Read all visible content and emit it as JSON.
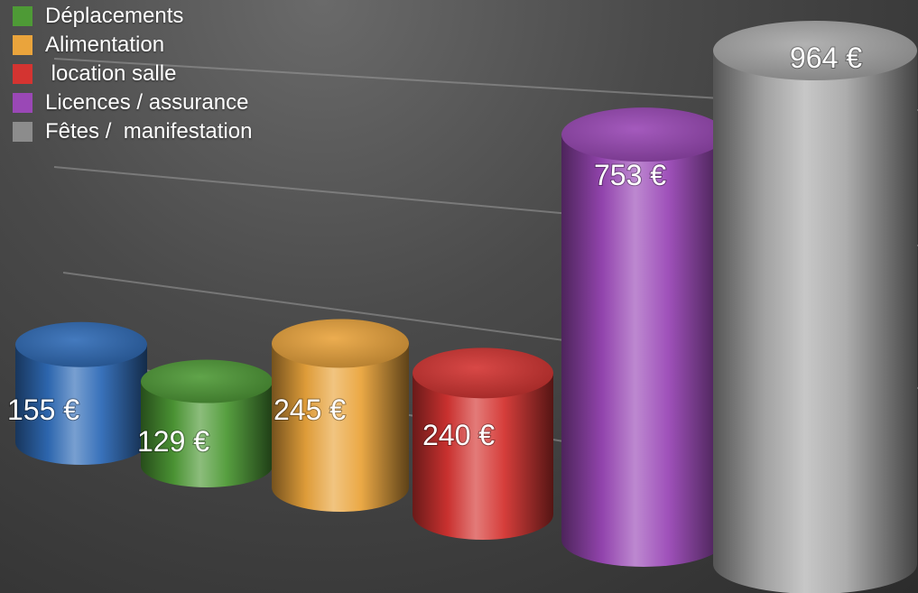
{
  "chart_data": {
    "type": "bar",
    "categories": [
      "",
      "Déplacements",
      "Alimentation",
      "location salle",
      "Licences / assurance",
      "Fêtes /  manifestation"
    ],
    "values": [
      155,
      129,
      245,
      240,
      753,
      964
    ],
    "value_labels": [
      "155 €",
      "129 €",
      "245 €",
      "240 €",
      "753 €",
      "964 €"
    ],
    "colors": [
      "#2f6bb7",
      "#4e9a36",
      "#eaa43c",
      "#d43431",
      "#9a48b6",
      "#a9a9a9"
    ],
    "legend": [
      {
        "label": "Déplacements",
        "color": "#4e9a36"
      },
      {
        "label": "Alimentation",
        "color": "#eaa43c"
      },
      {
        "label": " location salle",
        "color": "#d43431"
      },
      {
        "label": "Licences / assurance",
        "color": "#9a48b6"
      },
      {
        "label": "Fêtes /  manifestation",
        "color": "#8c8c8c"
      }
    ],
    "legend_position": "top-left",
    "grid": true,
    "style": "3d-cylinder"
  }
}
